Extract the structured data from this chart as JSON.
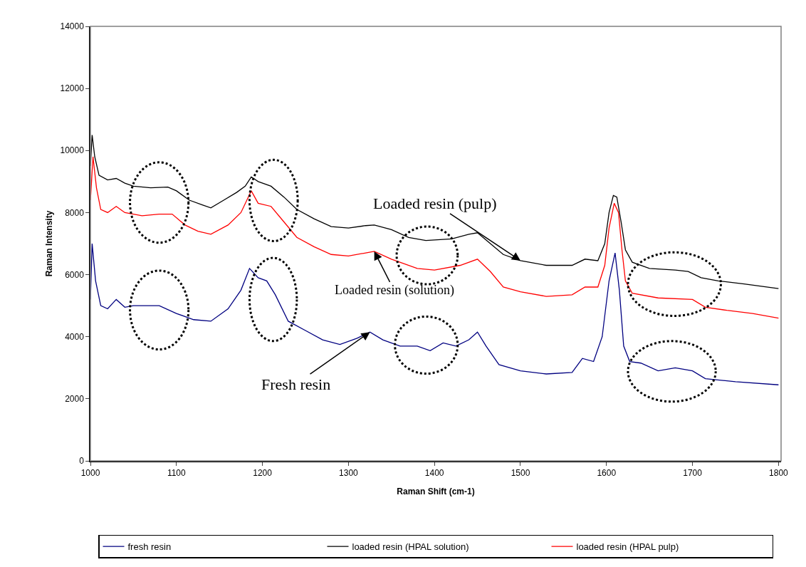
{
  "chart_data": {
    "type": "line",
    "xlabel": "Raman Shift (cm-1)",
    "ylabel": "Raman Intensity",
    "xlim": [
      1000,
      1803
    ],
    "xticks": [
      1000,
      1100,
      1200,
      1300,
      1400,
      1500,
      1600,
      1700,
      1800
    ],
    "ylim": [
      0,
      14000
    ],
    "yticks": [
      0,
      2000,
      4000,
      6000,
      8000,
      10000,
      12000,
      14000
    ],
    "legend": "bottom",
    "marker": "none",
    "line_style": "solid",
    "annotations": [
      {
        "text": "Loaded resin (pulp)",
        "x": 1500,
        "y": 6450
      },
      {
        "text": "Loaded resin (solution)",
        "x": 1330,
        "y": 6750
      },
      {
        "text": "Fresh resin",
        "x": 1325,
        "y": 4150
      }
    ],
    "series": [
      {
        "name": "fresh resin",
        "color": "#000080",
        "x": [
          1000,
          1002,
          1006,
          1012,
          1020,
          1030,
          1040,
          1050,
          1080,
          1100,
          1120,
          1140,
          1160,
          1175,
          1185,
          1195,
          1205,
          1215,
          1230,
          1250,
          1270,
          1290,
          1310,
          1325,
          1340,
          1360,
          1380,
          1395,
          1410,
          1425,
          1440,
          1450,
          1460,
          1475,
          1500,
          1530,
          1560,
          1572,
          1585,
          1595,
          1603,
          1610,
          1615,
          1620,
          1627,
          1640,
          1660,
          1680,
          1700,
          1715,
          1750,
          1800
        ],
        "values": [
          5200,
          7000,
          5800,
          5000,
          4900,
          5200,
          4950,
          5000,
          5000,
          4750,
          4550,
          4500,
          4900,
          5500,
          6200,
          5900,
          5800,
          5350,
          4500,
          4200,
          3900,
          3750,
          3950,
          4150,
          3900,
          3700,
          3700,
          3550,
          3800,
          3700,
          3900,
          4150,
          3700,
          3100,
          2900,
          2800,
          2850,
          3300,
          3200,
          4000,
          5800,
          6700,
          5500,
          3700,
          3200,
          3150,
          2900,
          3000,
          2900,
          2650,
          2550,
          2450
        ]
      },
      {
        "name": "loaded resin (HPAL solution)",
        "color": "#000000",
        "x": [
          1000,
          1002,
          1005,
          1010,
          1020,
          1030,
          1040,
          1050,
          1070,
          1090,
          1100,
          1115,
          1130,
          1140,
          1155,
          1170,
          1180,
          1187,
          1195,
          1210,
          1225,
          1240,
          1260,
          1280,
          1300,
          1320,
          1330,
          1350,
          1370,
          1390,
          1420,
          1440,
          1450,
          1465,
          1480,
          1500,
          1530,
          1560,
          1575,
          1590,
          1598,
          1603,
          1608,
          1612,
          1617,
          1622,
          1630,
          1650,
          1680,
          1695,
          1710,
          1730,
          1760,
          1800
        ],
        "values": [
          9500,
          10500,
          9800,
          9200,
          9050,
          9100,
          8950,
          8850,
          8800,
          8820,
          8700,
          8400,
          8250,
          8150,
          8400,
          8650,
          8850,
          9150,
          9000,
          8850,
          8500,
          8100,
          7800,
          7550,
          7500,
          7580,
          7600,
          7450,
          7200,
          7100,
          7150,
          7300,
          7350,
          7000,
          6650,
          6450,
          6300,
          6300,
          6500,
          6450,
          7000,
          8000,
          8550,
          8500,
          7700,
          6800,
          6400,
          6200,
          6150,
          6100,
          5900,
          5800,
          5700,
          5550
        ]
      },
      {
        "name": "loaded resin (HPAL pulp)",
        "color": "#ff0000",
        "x": [
          1000,
          1003,
          1007,
          1012,
          1020,
          1030,
          1040,
          1060,
          1080,
          1095,
          1110,
          1125,
          1140,
          1160,
          1175,
          1187,
          1195,
          1210,
          1225,
          1240,
          1260,
          1280,
          1300,
          1320,
          1330,
          1350,
          1380,
          1400,
          1430,
          1450,
          1465,
          1480,
          1500,
          1530,
          1560,
          1575,
          1590,
          1598,
          1603,
          1609,
          1614,
          1618,
          1622,
          1630,
          1660,
          1700,
          1715,
          1740,
          1770,
          1800
        ],
        "values": [
          8400,
          9800,
          8800,
          8100,
          8000,
          8200,
          8000,
          7900,
          7950,
          7950,
          7600,
          7400,
          7300,
          7600,
          8000,
          8700,
          8300,
          8200,
          7700,
          7200,
          6900,
          6650,
          6600,
          6700,
          6750,
          6500,
          6200,
          6150,
          6300,
          6500,
          6100,
          5600,
          5450,
          5300,
          5350,
          5600,
          5600,
          6300,
          7500,
          8300,
          8000,
          6800,
          5800,
          5400,
          5250,
          5200,
          4950,
          4850,
          4750,
          4600
        ]
      }
    ]
  }
}
